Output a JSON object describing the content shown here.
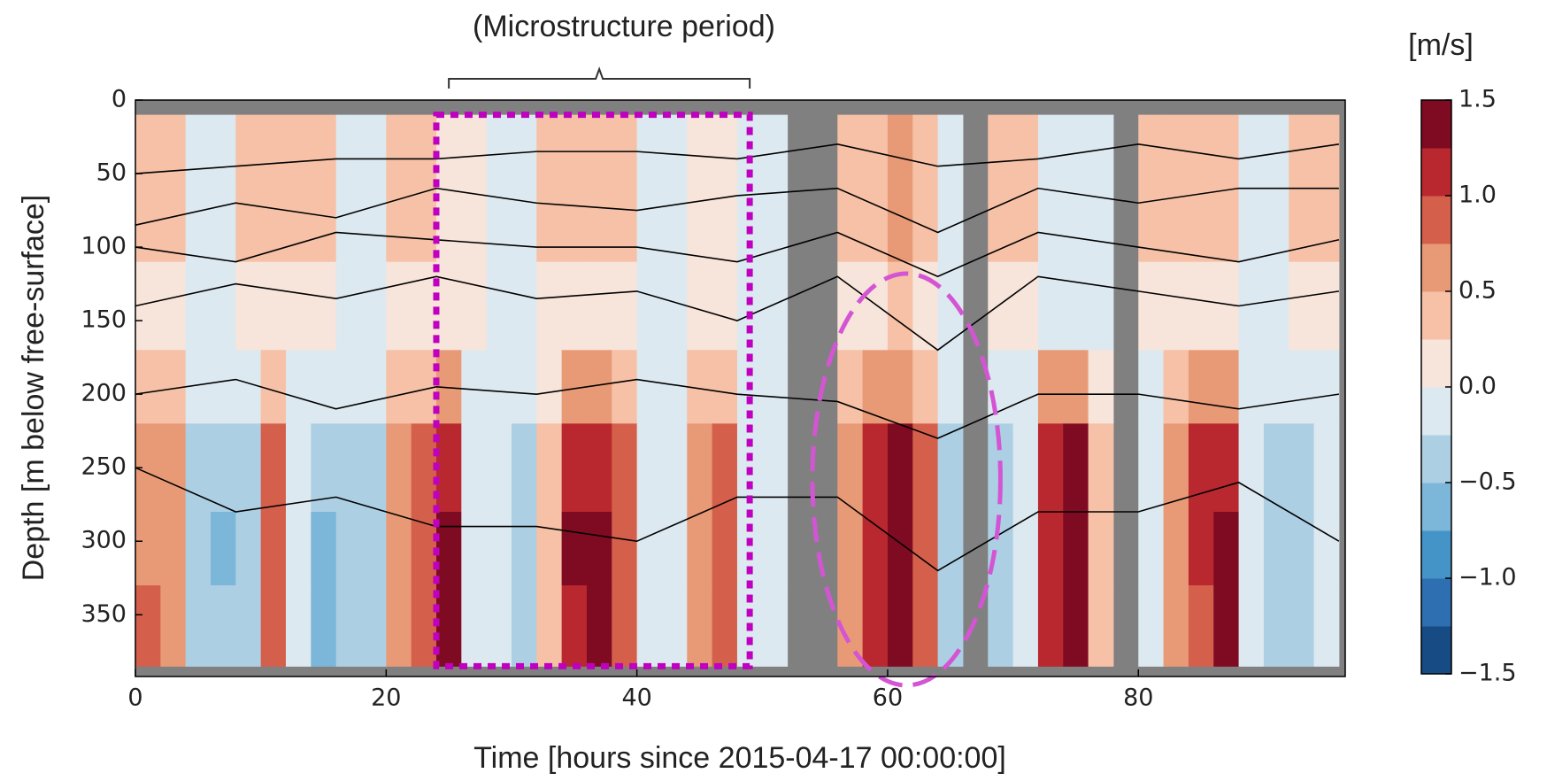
{
  "chart_data": {
    "type": "contourf",
    "title": "(Microstructure period)",
    "title_span": [
      25,
      49
    ],
    "x_label": "Time [hours since 2015-04-17 00:00:00]",
    "y_label": "Depth [m below free-surface]",
    "xlim": [
      0,
      96.5
    ],
    "ylim": [
      392,
      0
    ],
    "xticks": [
      0,
      20,
      40,
      60,
      80
    ],
    "yticks": [
      0,
      50,
      100,
      150,
      200,
      250,
      300,
      350
    ],
    "background": "#808080",
    "x_edges": [
      0,
      2,
      4,
      6,
      8,
      10,
      12,
      14,
      16,
      18,
      20,
      22,
      24,
      26,
      28,
      30,
      32,
      34,
      36,
      38,
      40,
      42,
      44,
      46,
      48,
      50,
      52,
      54,
      56,
      58,
      60,
      62,
      64,
      66,
      68,
      70,
      72,
      74,
      76,
      78,
      80,
      82,
      84,
      86,
      88,
      90,
      92,
      94,
      96
    ],
    "y_edges": [
      10,
      60,
      110,
      170,
      220,
      280,
      330,
      385
    ],
    "z": [
      [
        0.25,
        0.25,
        -0.25,
        -0.25,
        0.25,
        0.25,
        0.25,
        0.25,
        -0.25,
        -0.25,
        0.25,
        0.25,
        0.1,
        0.1,
        -0.25,
        -0.25,
        0.25,
        0.25,
        0.25,
        0.25,
        -0.25,
        -0.25,
        0.1,
        0.1,
        -0.25,
        -0.25,
        null,
        null,
        0.25,
        0.25,
        0.5,
        0.25,
        -0.25,
        null,
        0.25,
        0.25,
        -0.25,
        -0.25,
        -0.25,
        null,
        0.25,
        0.25,
        0.25,
        0.25,
        -0.25,
        -0.25,
        0.25,
        0.25
      ],
      [
        0.4,
        0.25,
        -0.25,
        -0.25,
        0.25,
        0.25,
        0.25,
        0.25,
        -0.25,
        -0.25,
        0.25,
        0.4,
        0.1,
        0.1,
        -0.25,
        -0.25,
        0.25,
        0.25,
        0.25,
        0.25,
        -0.25,
        -0.25,
        0.1,
        0.1,
        -0.25,
        -0.25,
        null,
        null,
        0.25,
        0.4,
        0.5,
        0.25,
        -0.25,
        null,
        0.25,
        0.25,
        -0.25,
        -0.25,
        -0.25,
        null,
        0.25,
        0.25,
        0.4,
        0.25,
        -0.25,
        -0.25,
        0.25,
        0.25
      ],
      [
        0.1,
        0.1,
        -0.1,
        -0.1,
        0.1,
        0.1,
        0.1,
        0.1,
        -0.1,
        -0.1,
        0.1,
        0.1,
        0,
        0,
        -0.1,
        -0.1,
        0.1,
        0.1,
        0.1,
        0.1,
        -0.1,
        -0.1,
        0,
        0,
        -0.1,
        -0.1,
        null,
        null,
        0.1,
        0.1,
        0.25,
        0.1,
        -0.1,
        null,
        0.1,
        0.1,
        -0.1,
        -0.1,
        -0.1,
        null,
        0.1,
        0.1,
        0.1,
        0.1,
        -0.1,
        -0.1,
        0.1,
        0.1
      ],
      [
        0.25,
        0.25,
        -0.25,
        -0.25,
        -0.25,
        0.25,
        -0.1,
        -0.25,
        -0.25,
        -0.25,
        0.25,
        0.25,
        0.5,
        -0.1,
        -0.1,
        -0.25,
        0.1,
        0.5,
        0.5,
        0.25,
        -0.1,
        -0.1,
        0.25,
        0.25,
        -0.1,
        -0.1,
        null,
        null,
        0.25,
        0.5,
        0.5,
        0.25,
        -0.25,
        null,
        -0.25,
        -0.1,
        0.5,
        0.5,
        0.1,
        null,
        -0.1,
        0.25,
        0.5,
        0.5,
        -0.1,
        -0.25,
        -0.25,
        -0.1
      ],
      [
        0.5,
        0.5,
        -0.5,
        -0.5,
        -0.5,
        0.75,
        -0.25,
        -0.5,
        -0.5,
        -0.5,
        0.5,
        0.75,
        1.0,
        -0.25,
        -0.25,
        -0.5,
        0.25,
        1.0,
        1.0,
        0.75,
        -0.25,
        -0.25,
        0.5,
        0.75,
        -0.25,
        -0.25,
        null,
        null,
        0.5,
        1.0,
        1.25,
        0.75,
        -0.5,
        null,
        -0.5,
        -0.25,
        1.0,
        1.25,
        0.25,
        null,
        -0.25,
        0.5,
        1.0,
        1.0,
        -0.25,
        -0.5,
        -0.5,
        -0.25
      ],
      [
        0.5,
        0.5,
        -0.5,
        -0.75,
        -0.5,
        0.75,
        -0.25,
        -0.75,
        -0.5,
        -0.5,
        0.5,
        0.75,
        1.25,
        -0.25,
        -0.25,
        -0.5,
        0.25,
        1.25,
        1.25,
        0.75,
        -0.25,
        -0.25,
        0.5,
        0.75,
        -0.25,
        -0.25,
        null,
        null,
        0.5,
        1.0,
        1.25,
        0.75,
        -0.5,
        null,
        -0.5,
        -0.25,
        1.0,
        1.4,
        0.25,
        null,
        -0.25,
        0.5,
        1.0,
        1.25,
        -0.25,
        -0.5,
        -0.5,
        -0.25
      ],
      [
        0.75,
        0.5,
        -0.5,
        -0.5,
        -0.5,
        0.75,
        -0.25,
        -0.75,
        -0.5,
        -0.5,
        0.5,
        0.75,
        1.25,
        -0.25,
        -0.25,
        -0.5,
        0.25,
        1.0,
        1.25,
        0.75,
        -0.25,
        -0.25,
        0.5,
        0.75,
        -0.25,
        -0.25,
        null,
        null,
        0.5,
        1.0,
        1.25,
        0.75,
        -0.5,
        null,
        -0.5,
        -0.25,
        1.0,
        1.4,
        0.25,
        null,
        -0.25,
        0.5,
        0.75,
        1.25,
        -0.25,
        -0.5,
        -0.5,
        -0.25
      ]
    ],
    "lines_x": [
      0,
      8,
      16,
      24,
      32,
      40,
      48,
      56,
      64,
      72,
      80,
      88,
      96
    ],
    "lines_color": "#000000",
    "lines": [
      [
        50,
        45,
        40,
        40,
        35,
        35,
        40,
        30,
        45,
        40,
        30,
        40,
        30
      ],
      [
        85,
        70,
        80,
        60,
        70,
        75,
        65,
        60,
        90,
        60,
        70,
        60,
        60
      ],
      [
        100,
        110,
        90,
        95,
        100,
        100,
        110,
        90,
        120,
        90,
        100,
        110,
        95
      ],
      [
        140,
        125,
        135,
        120,
        135,
        130,
        150,
        120,
        170,
        120,
        130,
        140,
        130
      ],
      [
        200,
        190,
        210,
        195,
        200,
        190,
        200,
        205,
        230,
        200,
        200,
        210,
        200
      ],
      [
        250,
        280,
        270,
        290,
        290,
        300,
        270,
        270,
        320,
        280,
        280,
        260,
        300
      ]
    ],
    "regions": [
      {
        "shape": "rect",
        "x": [
          24,
          49
        ],
        "y": [
          10,
          385
        ],
        "color": "#c000c0"
      },
      {
        "shape": "ellipse",
        "x": [
          54,
          69
        ],
        "y": [
          118,
          398
        ],
        "color": "#d455d4"
      }
    ],
    "colorbar": {
      "label": "[m/s]",
      "levels": [
        -1.5,
        -1.25,
        -1.0,
        -0.75,
        -0.5,
        -0.25,
        0,
        0.25,
        0.5,
        0.75,
        1.0,
        1.25,
        1.5
      ],
      "colors": [
        "#164b84",
        "#2d6fb0",
        "#4594c7",
        "#7cb6d8",
        "#adcfe4",
        "#dde9f0",
        "#f7e4da",
        "#f6c1a6",
        "#e89a77",
        "#d4604c",
        "#b9282f",
        "#7f0b22"
      ],
      "ticks": [
        {
          "value": -1.5,
          "label": "−1.5"
        },
        {
          "value": -1.0,
          "label": "−1.0"
        },
        {
          "value": -0.5,
          "label": "−0.5"
        },
        {
          "value": 0.0,
          "label": "0.0"
        },
        0.5,
        {
          "value": 1.0,
          "label": "1.0"
        },
        1.5
      ]
    }
  }
}
